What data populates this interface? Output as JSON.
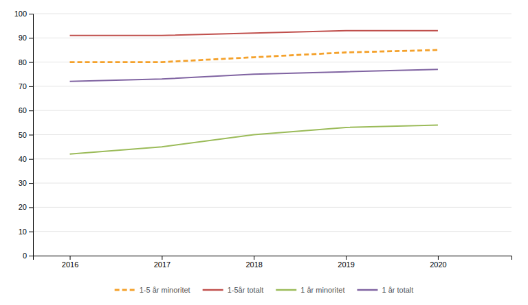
{
  "chart_data": {
    "type": "line",
    "x": [
      2016,
      2017,
      2018,
      2019,
      2020
    ],
    "series": [
      {
        "name": "1-5 år minoritet",
        "color": "#F4A12B",
        "line_style": "dashed",
        "values": [
          80,
          80,
          82,
          84,
          85
        ]
      },
      {
        "name": "1-5år totalt",
        "color": "#C0504D",
        "line_style": "solid",
        "values": [
          91,
          91,
          92,
          93,
          93
        ]
      },
      {
        "name": "1 år minoritet",
        "color": "#9BBB59",
        "line_style": "solid",
        "values": [
          42,
          45,
          50,
          53,
          54
        ]
      },
      {
        "name": "1 år totalt",
        "color": "#8064A2",
        "line_style": "solid",
        "values": [
          72,
          73,
          75,
          76,
          77
        ]
      }
    ],
    "xlim": [
      2015.6,
      2020.8
    ],
    "xticks": [
      2016,
      2017,
      2018,
      2019,
      2020
    ],
    "ylim": [
      0,
      100
    ],
    "yticks": [
      0,
      10,
      20,
      30,
      40,
      50,
      60,
      70,
      80,
      90,
      100
    ],
    "grid": true,
    "legend": "bottom"
  }
}
